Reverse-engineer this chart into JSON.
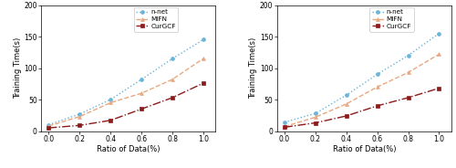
{
  "x": [
    0.0,
    0.2,
    0.4,
    0.6,
    0.8,
    1.0
  ],
  "panel1": {
    "n_net": [
      10,
      27,
      50,
      82,
      115,
      145
    ],
    "MIFN": [
      8,
      23,
      45,
      60,
      82,
      115
    ],
    "CurGCF": [
      5,
      9,
      17,
      35,
      53,
      76
    ]
  },
  "panel2": {
    "n_net": [
      14,
      28,
      57,
      90,
      120,
      155
    ],
    "MIFN": [
      7,
      22,
      43,
      70,
      93,
      122
    ],
    "CurGCF": [
      6,
      13,
      24,
      40,
      53,
      68
    ]
  },
  "xlabel": "Ratio of Data(%)",
  "ylabel": "Training Time(s)",
  "ylim": [
    0,
    200
  ],
  "yticks": [
    0,
    50,
    100,
    150,
    200
  ],
  "xticks": [
    0.0,
    0.2,
    0.4,
    0.6,
    0.8,
    1.0
  ],
  "colors": {
    "n_net": "#6ab4d8",
    "MIFN": "#e8a882",
    "CurGCF": "#8b1a1a"
  },
  "legend_labels": [
    "n-net",
    "MIFN",
    "CurGCF"
  ]
}
